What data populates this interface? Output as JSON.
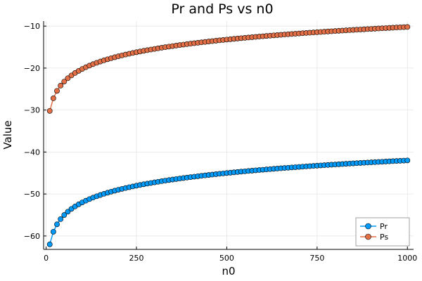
{
  "chart_data": {
    "type": "line",
    "title": "Pr and Ps vs n0",
    "xlabel": "n0",
    "ylabel": "Value",
    "xlim": [
      -7,
      1017
    ],
    "ylim": [
      -63.2,
      -8.8
    ],
    "xticks": [
      0,
      250,
      500,
      750,
      1000
    ],
    "xtick_labels": [
      "0",
      "250",
      "500",
      "750",
      "1000"
    ],
    "yticks": [
      -60,
      -50,
      -40,
      -30,
      -20,
      -10
    ],
    "ytick_labels": [
      "−60",
      "−50",
      "−40",
      "−30",
      "−20",
      "−10"
    ],
    "grid": true,
    "legend_position": "bottom-right",
    "x": {
      "start": 10,
      "end": 1000,
      "step": 10
    },
    "series": [
      {
        "name": "Pr",
        "color": "#009AFA",
        "marker": "circle",
        "formula": "10*log10(n0) - 72",
        "y_at_10": -62.0,
        "y_at_1000": -42.0
      },
      {
        "name": "Ps",
        "color": "#E26F46",
        "marker": "circle",
        "formula": "10*log10(n0) - 40.2",
        "y_at_10": -30.2,
        "y_at_1000": -10.2
      }
    ]
  }
}
